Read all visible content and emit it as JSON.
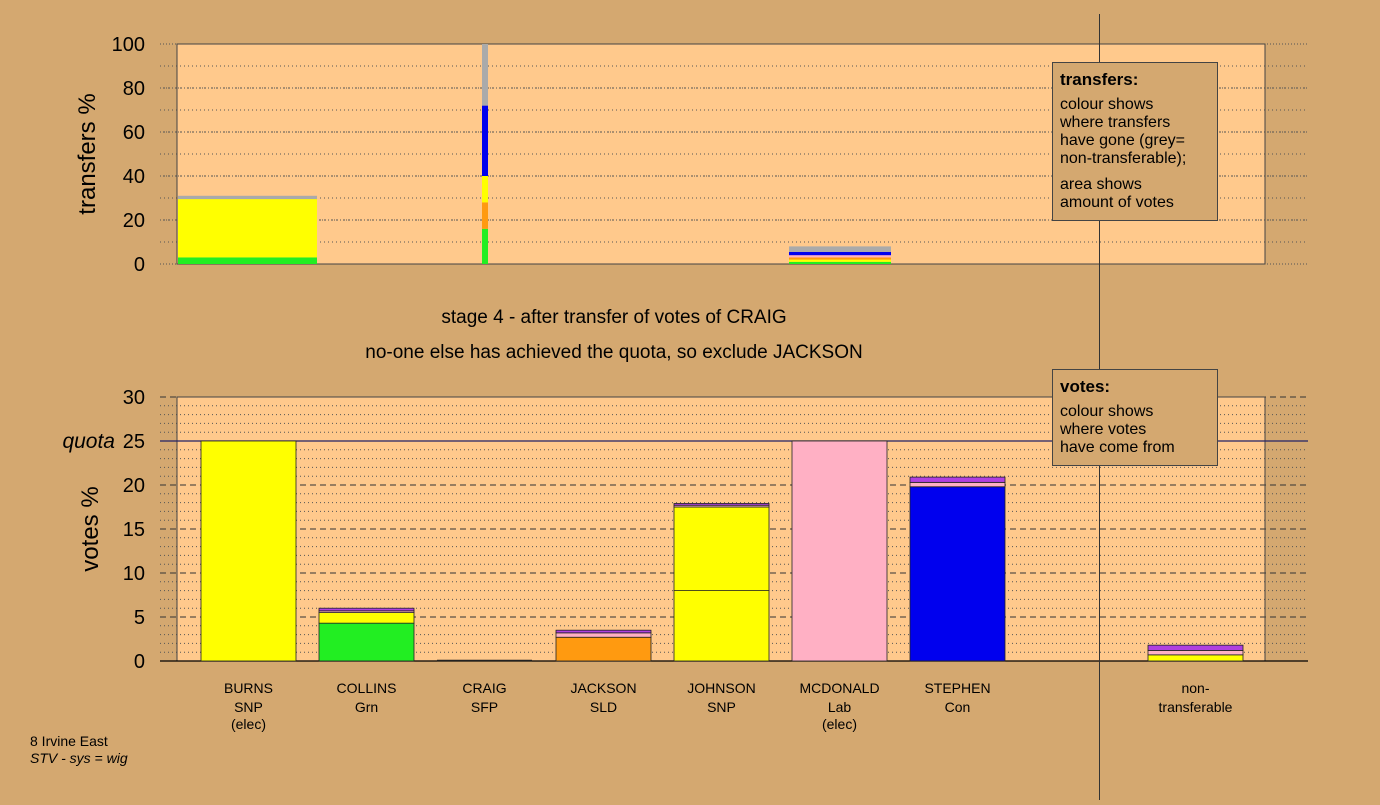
{
  "caption": {
    "line1": "stage 4 - after transfer of votes of CRAIG",
    "line2": "no-one else has achieved the quota, so exclude JACKSON"
  },
  "transfers_note": {
    "title": "transfers:",
    "lines": [
      "colour shows",
      "where transfers",
      "have gone (grey=",
      "non-transferable);"
    ],
    "lines2": [
      "area shows",
      "amount of votes"
    ]
  },
  "votes_note": {
    "title": "votes:",
    "lines": [
      "colour shows",
      "where votes",
      "have come from"
    ]
  },
  "footer": {
    "line1": "8 Irvine East",
    "line2": "STV - sys = wig"
  },
  "colors": {
    "background": "#d4a870",
    "plot_bg": "#ffc98c",
    "SNP": "#ffff00",
    "Grn": "#22ee22",
    "SFP": "#999999",
    "SLD": "#ff9a10",
    "Lab": "#ffb0c4",
    "Con": "#0000ee",
    "nontransferable": "#aaaaaa",
    "purple": "#b040e0"
  },
  "candidates": [
    {
      "name": "BURNS",
      "party": "SNP",
      "status": "(elec)"
    },
    {
      "name": "COLLINS",
      "party": "Grn",
      "status": ""
    },
    {
      "name": "CRAIG",
      "party": "SFP",
      "status": ""
    },
    {
      "name": "JACKSON",
      "party": "SLD",
      "status": ""
    },
    {
      "name": "JOHNSON",
      "party": "SNP",
      "status": ""
    },
    {
      "name": "MCDONALD",
      "party": "Lab",
      "status": "(elec)"
    },
    {
      "name": "STEPHEN",
      "party": "Con",
      "status": ""
    }
  ],
  "nontransferable_label": [
    "non-",
    "transferable"
  ],
  "chart_data": [
    {
      "type": "bar",
      "ylabel": "transfers %",
      "ylim": [
        0,
        100
      ],
      "yticks": [
        0,
        20,
        40,
        60,
        80,
        100
      ],
      "grid": "dotted",
      "columns": [
        {
          "segments": [
            {
              "color": "Grn",
              "value": 3
            },
            {
              "color": "SNP",
              "value": 26.5
            },
            {
              "color": "nontransferable",
              "value": 1.5
            }
          ]
        },
        {
          "segments": [
            {
              "color": "Grn",
              "value": 16
            },
            {
              "color": "SLD",
              "value": 12
            },
            {
              "color": "SNP",
              "value": 12
            },
            {
              "color": "Con",
              "value": 32
            },
            {
              "color": "nontransferable",
              "value": 28
            }
          ]
        },
        {
          "segments": [
            {
              "color": "Grn",
              "value": 1
            },
            {
              "color": "SNP",
              "value": 1
            },
            {
              "color": "SLD",
              "value": 1
            },
            {
              "color": "Lab",
              "value": 1
            },
            {
              "color": "Con",
              "value": 1.5
            },
            {
              "color": "nontransferable",
              "value": 2.5
            }
          ]
        }
      ]
    },
    {
      "type": "bar",
      "ylabel": "votes %",
      "ylim": [
        0,
        30
      ],
      "yticks": [
        0,
        5,
        10,
        15,
        20,
        25,
        30
      ],
      "quota": 25,
      "quota_label": "quota",
      "grid": "dashed",
      "bars": [
        {
          "segments": [
            {
              "color": "SNP",
              "value": 25
            }
          ]
        },
        {
          "segments": [
            {
              "color": "Grn",
              "value": 4.3
            },
            {
              "color": "SNP",
              "value": 1.2
            },
            {
              "color": "Lab",
              "value": 0.2
            },
            {
              "color": "purple",
              "value": 0.3
            }
          ]
        },
        {
          "segments": [
            {
              "color": "SFP",
              "value": 0
            }
          ]
        },
        {
          "segments": [
            {
              "color": "SLD",
              "value": 2.7
            },
            {
              "color": "Lab",
              "value": 0.5
            },
            {
              "color": "purple",
              "value": 0.3
            }
          ]
        },
        {
          "segments": [
            {
              "color": "SNP",
              "value": 8
            },
            {
              "color": "SNP",
              "value": 9.5
            },
            {
              "color": "Lab",
              "value": 0.2
            },
            {
              "color": "purple",
              "value": 0.2
            }
          ]
        },
        {
          "segments": [
            {
              "color": "Lab",
              "value": 25
            }
          ]
        },
        {
          "segments": [
            {
              "color": "Con",
              "value": 19.8
            },
            {
              "color": "Lab",
              "value": 0.5
            },
            {
              "color": "purple",
              "value": 0.6
            }
          ]
        },
        {
          "segments": [
            {
              "color": "SNP",
              "value": 0.7
            },
            {
              "color": "Lab",
              "value": 0.5
            },
            {
              "color": "purple",
              "value": 0.6
            }
          ]
        }
      ]
    }
  ]
}
